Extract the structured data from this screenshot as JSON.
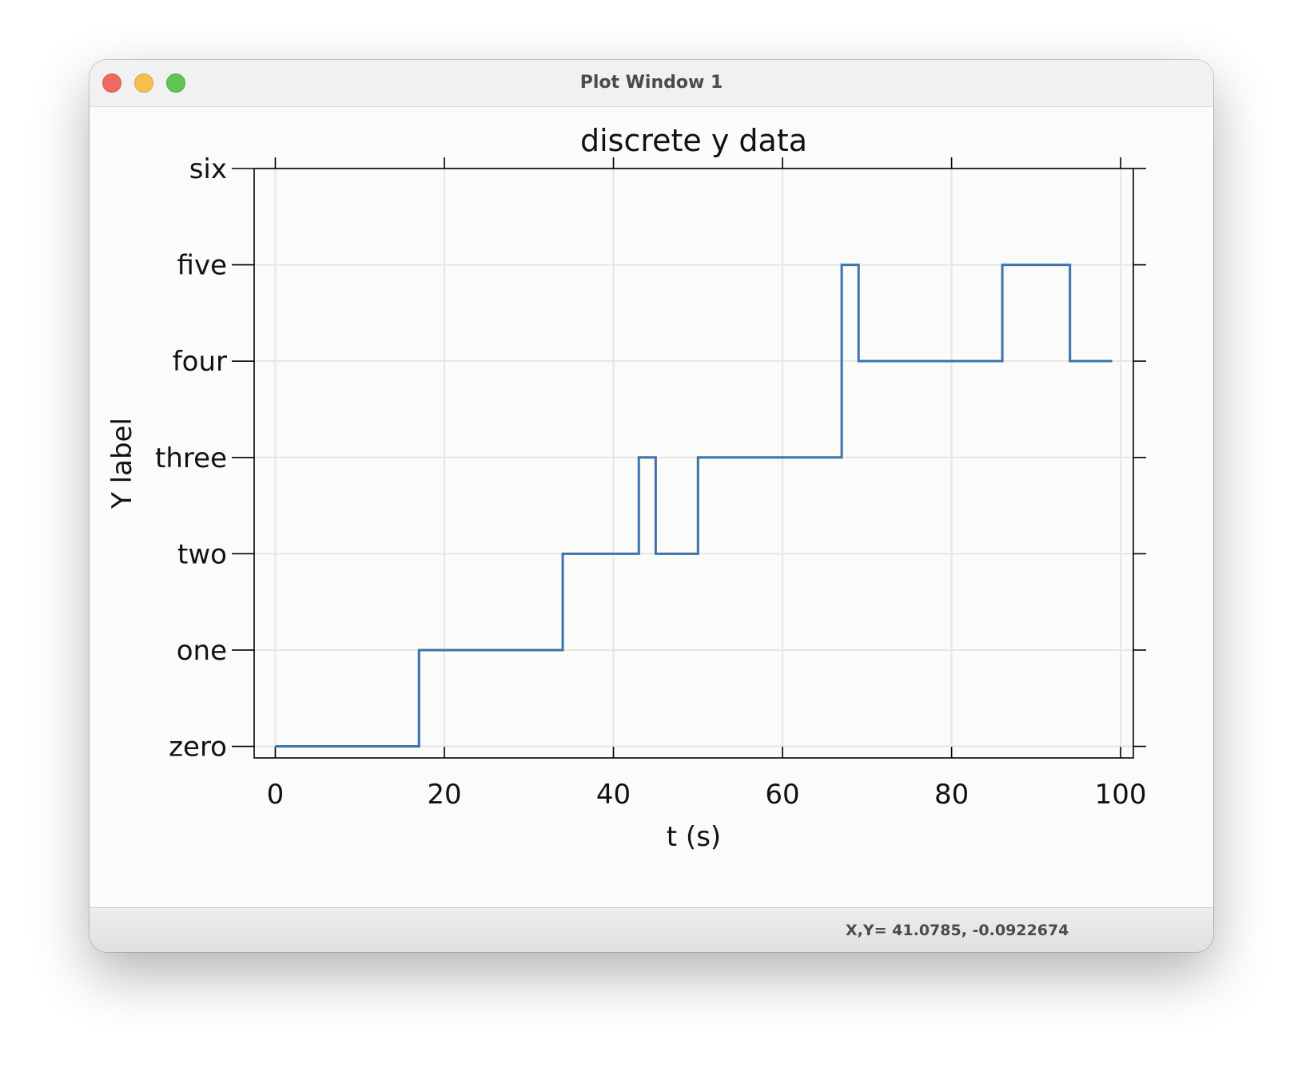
{
  "window": {
    "title": "Plot Window 1",
    "controls": {
      "close": "close-button",
      "minimize": "minimize-button",
      "zoom": "zoom-button"
    }
  },
  "status": {
    "coords": "X,Y= 41.0785, -0.0922674"
  },
  "colors": {
    "line": "#3b74ad",
    "grid": "#e6e6e4",
    "background": "#fbfbfa"
  },
  "chart_data": {
    "type": "line",
    "title": "discrete y data",
    "xlabel": "t (s)",
    "ylabel": "Y label",
    "xlim": [
      -2.5,
      101.5
    ],
    "ylim": [
      -0.12,
      6
    ],
    "x_ticks": [
      0,
      20,
      40,
      60,
      80,
      100
    ],
    "y_ticks": [
      0,
      1,
      2,
      3,
      4,
      5,
      6
    ],
    "y_tick_labels": [
      "zero",
      "one",
      "two",
      "three",
      "four",
      "five",
      "six"
    ],
    "grid": true,
    "step": "post",
    "series": [
      {
        "x": [
          0,
          17,
          34,
          43,
          45,
          50,
          67,
          69,
          86,
          94,
          99
        ],
        "y": [
          0,
          1,
          2,
          3,
          2,
          3,
          5,
          4,
          5,
          4,
          4
        ]
      }
    ]
  }
}
